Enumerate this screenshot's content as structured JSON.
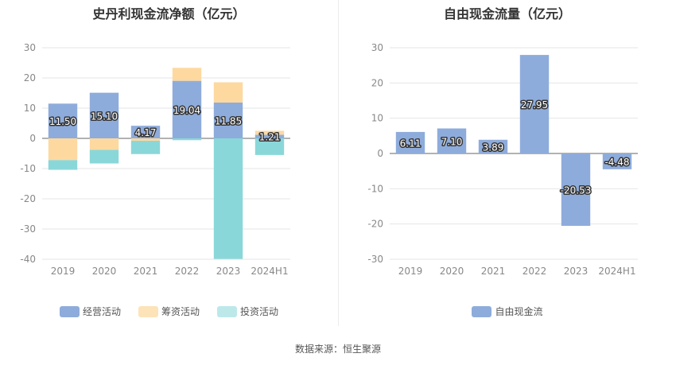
{
  "chart_data": [
    {
      "type": "bar",
      "stacked": true,
      "title": "史丹利现金流净额（亿元）",
      "categories": [
        "2019",
        "2020",
        "2021",
        "2022",
        "2023",
        "2024H1"
      ],
      "ylim": [
        -40,
        30
      ],
      "yticks": [
        "30",
        "20",
        "10",
        "0",
        "-10",
        "-20",
        "-30",
        "-40"
      ],
      "grid": true,
      "legend_position": "bottom",
      "series": [
        {
          "name": "经营活动",
          "color": "#8eacdb",
          "values": [
            11.5,
            15.1,
            4.17,
            19.04,
            11.85,
            1.21
          ],
          "labels": [
            "11.50",
            "15.10",
            "4.17",
            "19.04",
            "11.85",
            "1.21"
          ]
        },
        {
          "name": "筹资活动",
          "color": "#fdd9a0",
          "values": [
            -7.2,
            -3.8,
            -0.8,
            4.3,
            6.7,
            1.3
          ]
        },
        {
          "name": "投资活动",
          "color": "#8ad7d9",
          "values": [
            -3.2,
            -4.5,
            -4.4,
            -0.6,
            -39.9,
            -5.5
          ]
        }
      ]
    },
    {
      "type": "bar",
      "title": "自由现金流量（亿元）",
      "categories": [
        "2019",
        "2020",
        "2021",
        "2022",
        "2023",
        "2024H1"
      ],
      "ylim": [
        -30,
        30
      ],
      "yticks": [
        "30",
        "20",
        "10",
        "0",
        "-10",
        "-20",
        "-30"
      ],
      "grid": true,
      "legend_position": "bottom",
      "series": [
        {
          "name": "自由现金流",
          "color": "#8eacdb",
          "values": [
            6.11,
            7.1,
            3.89,
            27.95,
            -20.53,
            -4.48
          ],
          "labels": [
            "6.11",
            "7.10",
            "3.89",
            "27.95",
            "-20.53",
            "-4.48"
          ]
        }
      ]
    }
  ],
  "footer": {
    "source": "数据来源：恒生聚源"
  }
}
